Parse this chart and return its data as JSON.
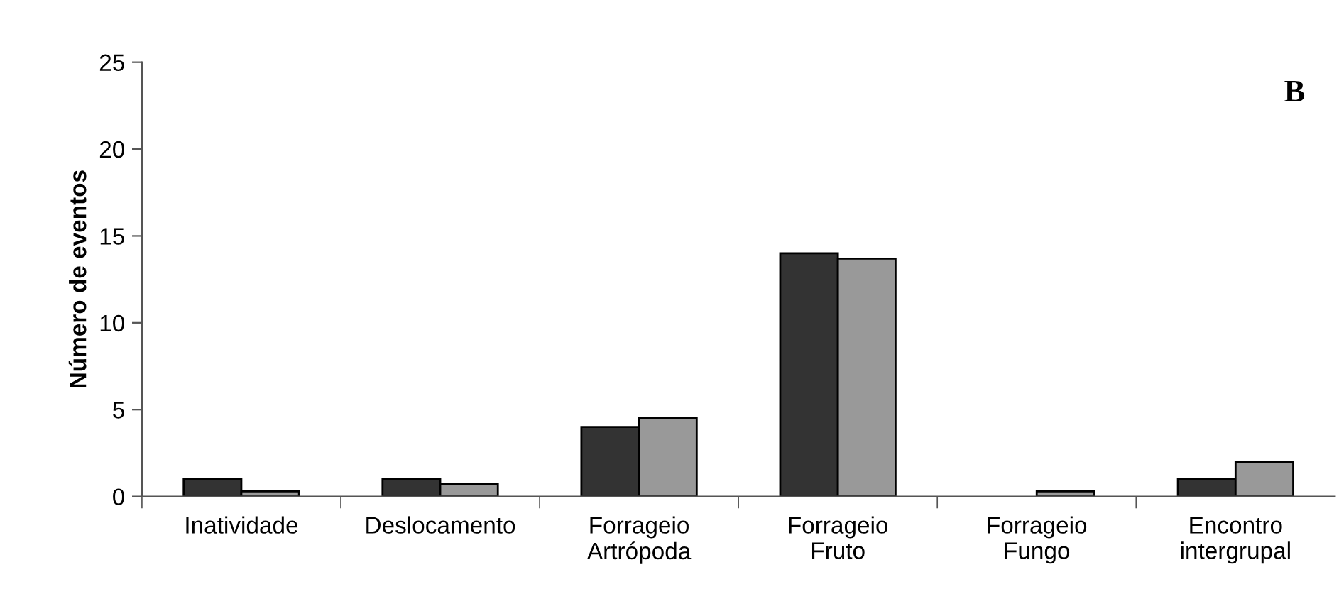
{
  "chart_data": {
    "type": "bar",
    "ylabel": "Número de eventos",
    "categories": [
      "Inatividade",
      "Deslocamento",
      "Forrageio\nArtrópoda",
      "Forrageio\nFruto",
      "Forrageio\nFungo",
      "Encontro\nintergrupal"
    ],
    "series": [
      {
        "color": "#333333",
        "values": [
          1,
          1,
          4,
          14,
          0,
          1
        ]
      },
      {
        "color": "#999999",
        "values": [
          0.3,
          0.7,
          4.5,
          13.7,
          0.3,
          2
        ]
      }
    ],
    "ylim": [
      0,
      25
    ],
    "yticks": [
      0,
      5,
      10,
      15,
      20,
      25
    ],
    "grid": false,
    "legend": false,
    "annotations": [
      "B"
    ]
  }
}
